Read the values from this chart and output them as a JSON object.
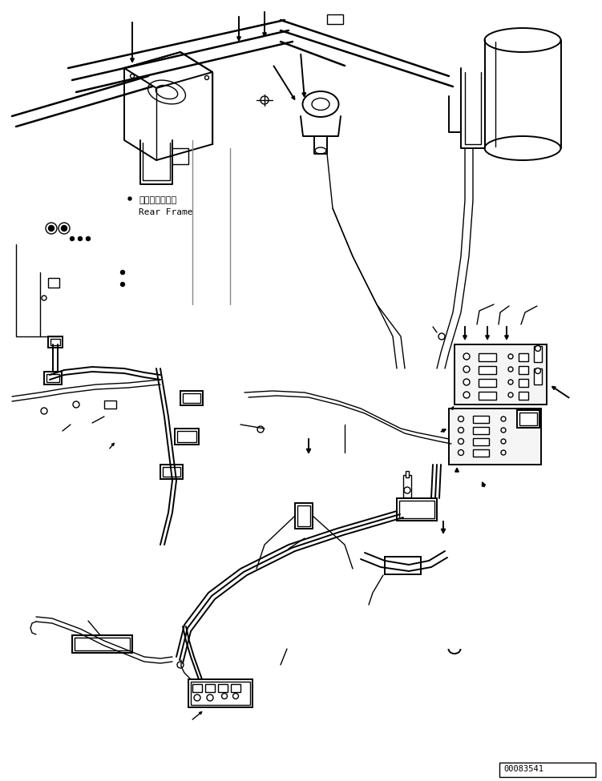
{
  "bg_color": "#ffffff",
  "line_color": "#000000",
  "part_num_text": "00083541",
  "label_ja": "リヤーフレーム",
  "label_en": "Rear Frame",
  "figsize": [
    7.51,
    9.75
  ],
  "dpi": 100
}
